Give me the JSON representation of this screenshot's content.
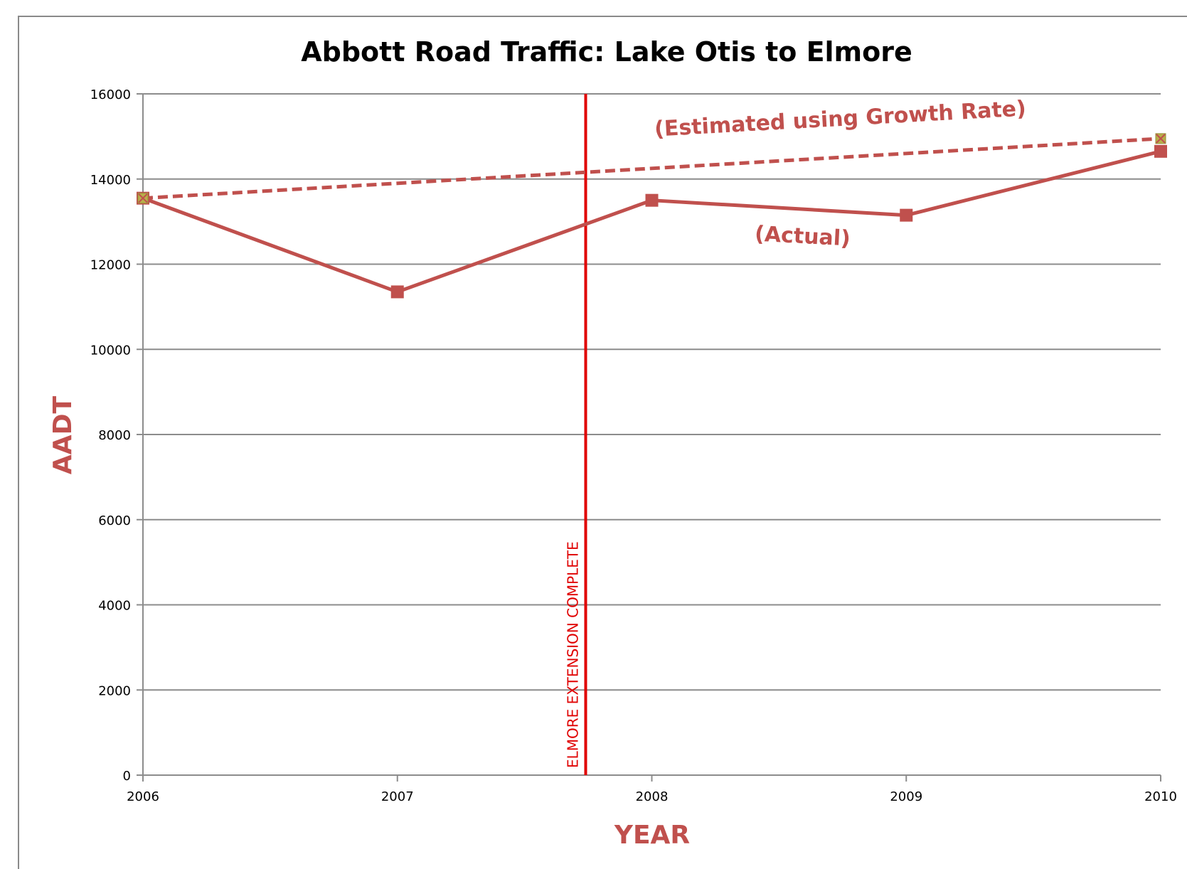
{
  "chart_data": {
    "type": "line",
    "title": "Abbott Road Traffic: Lake Otis to Elmore",
    "xlabel": "YEAR",
    "ylabel": "AADT",
    "x": [
      2006,
      2007,
      2008,
      2009,
      2010
    ],
    "xlim": [
      2006,
      2010
    ],
    "ylim": [
      0,
      16000
    ],
    "yticks": [
      0,
      2000,
      4000,
      6000,
      8000,
      10000,
      12000,
      14000,
      16000
    ],
    "grid": "horizontal",
    "series": [
      {
        "key": "actual",
        "label": "(Actual)",
        "style": "solid",
        "color": "#c0504d",
        "marker_color": "#c0504d",
        "points": [
          {
            "x": 2006,
            "y": 13550
          },
          {
            "x": 2007,
            "y": 11350
          },
          {
            "x": 2008,
            "y": 13500
          },
          {
            "x": 2009,
            "y": 13150
          },
          {
            "x": 2010,
            "y": 14650
          }
        ]
      },
      {
        "key": "estimated",
        "label": "(Estimated using Growth Rate)",
        "style": "dashed",
        "color": "#c0504d",
        "marker_color": "#b8b04a",
        "points": [
          {
            "x": 2006,
            "y": 13550
          },
          {
            "x": 2010,
            "y": 14950
          }
        ]
      }
    ],
    "vertical_marker": {
      "x": 2007.74,
      "label": "ELMORE EXTENSION COMPLETE",
      "color": "#e00000"
    }
  }
}
